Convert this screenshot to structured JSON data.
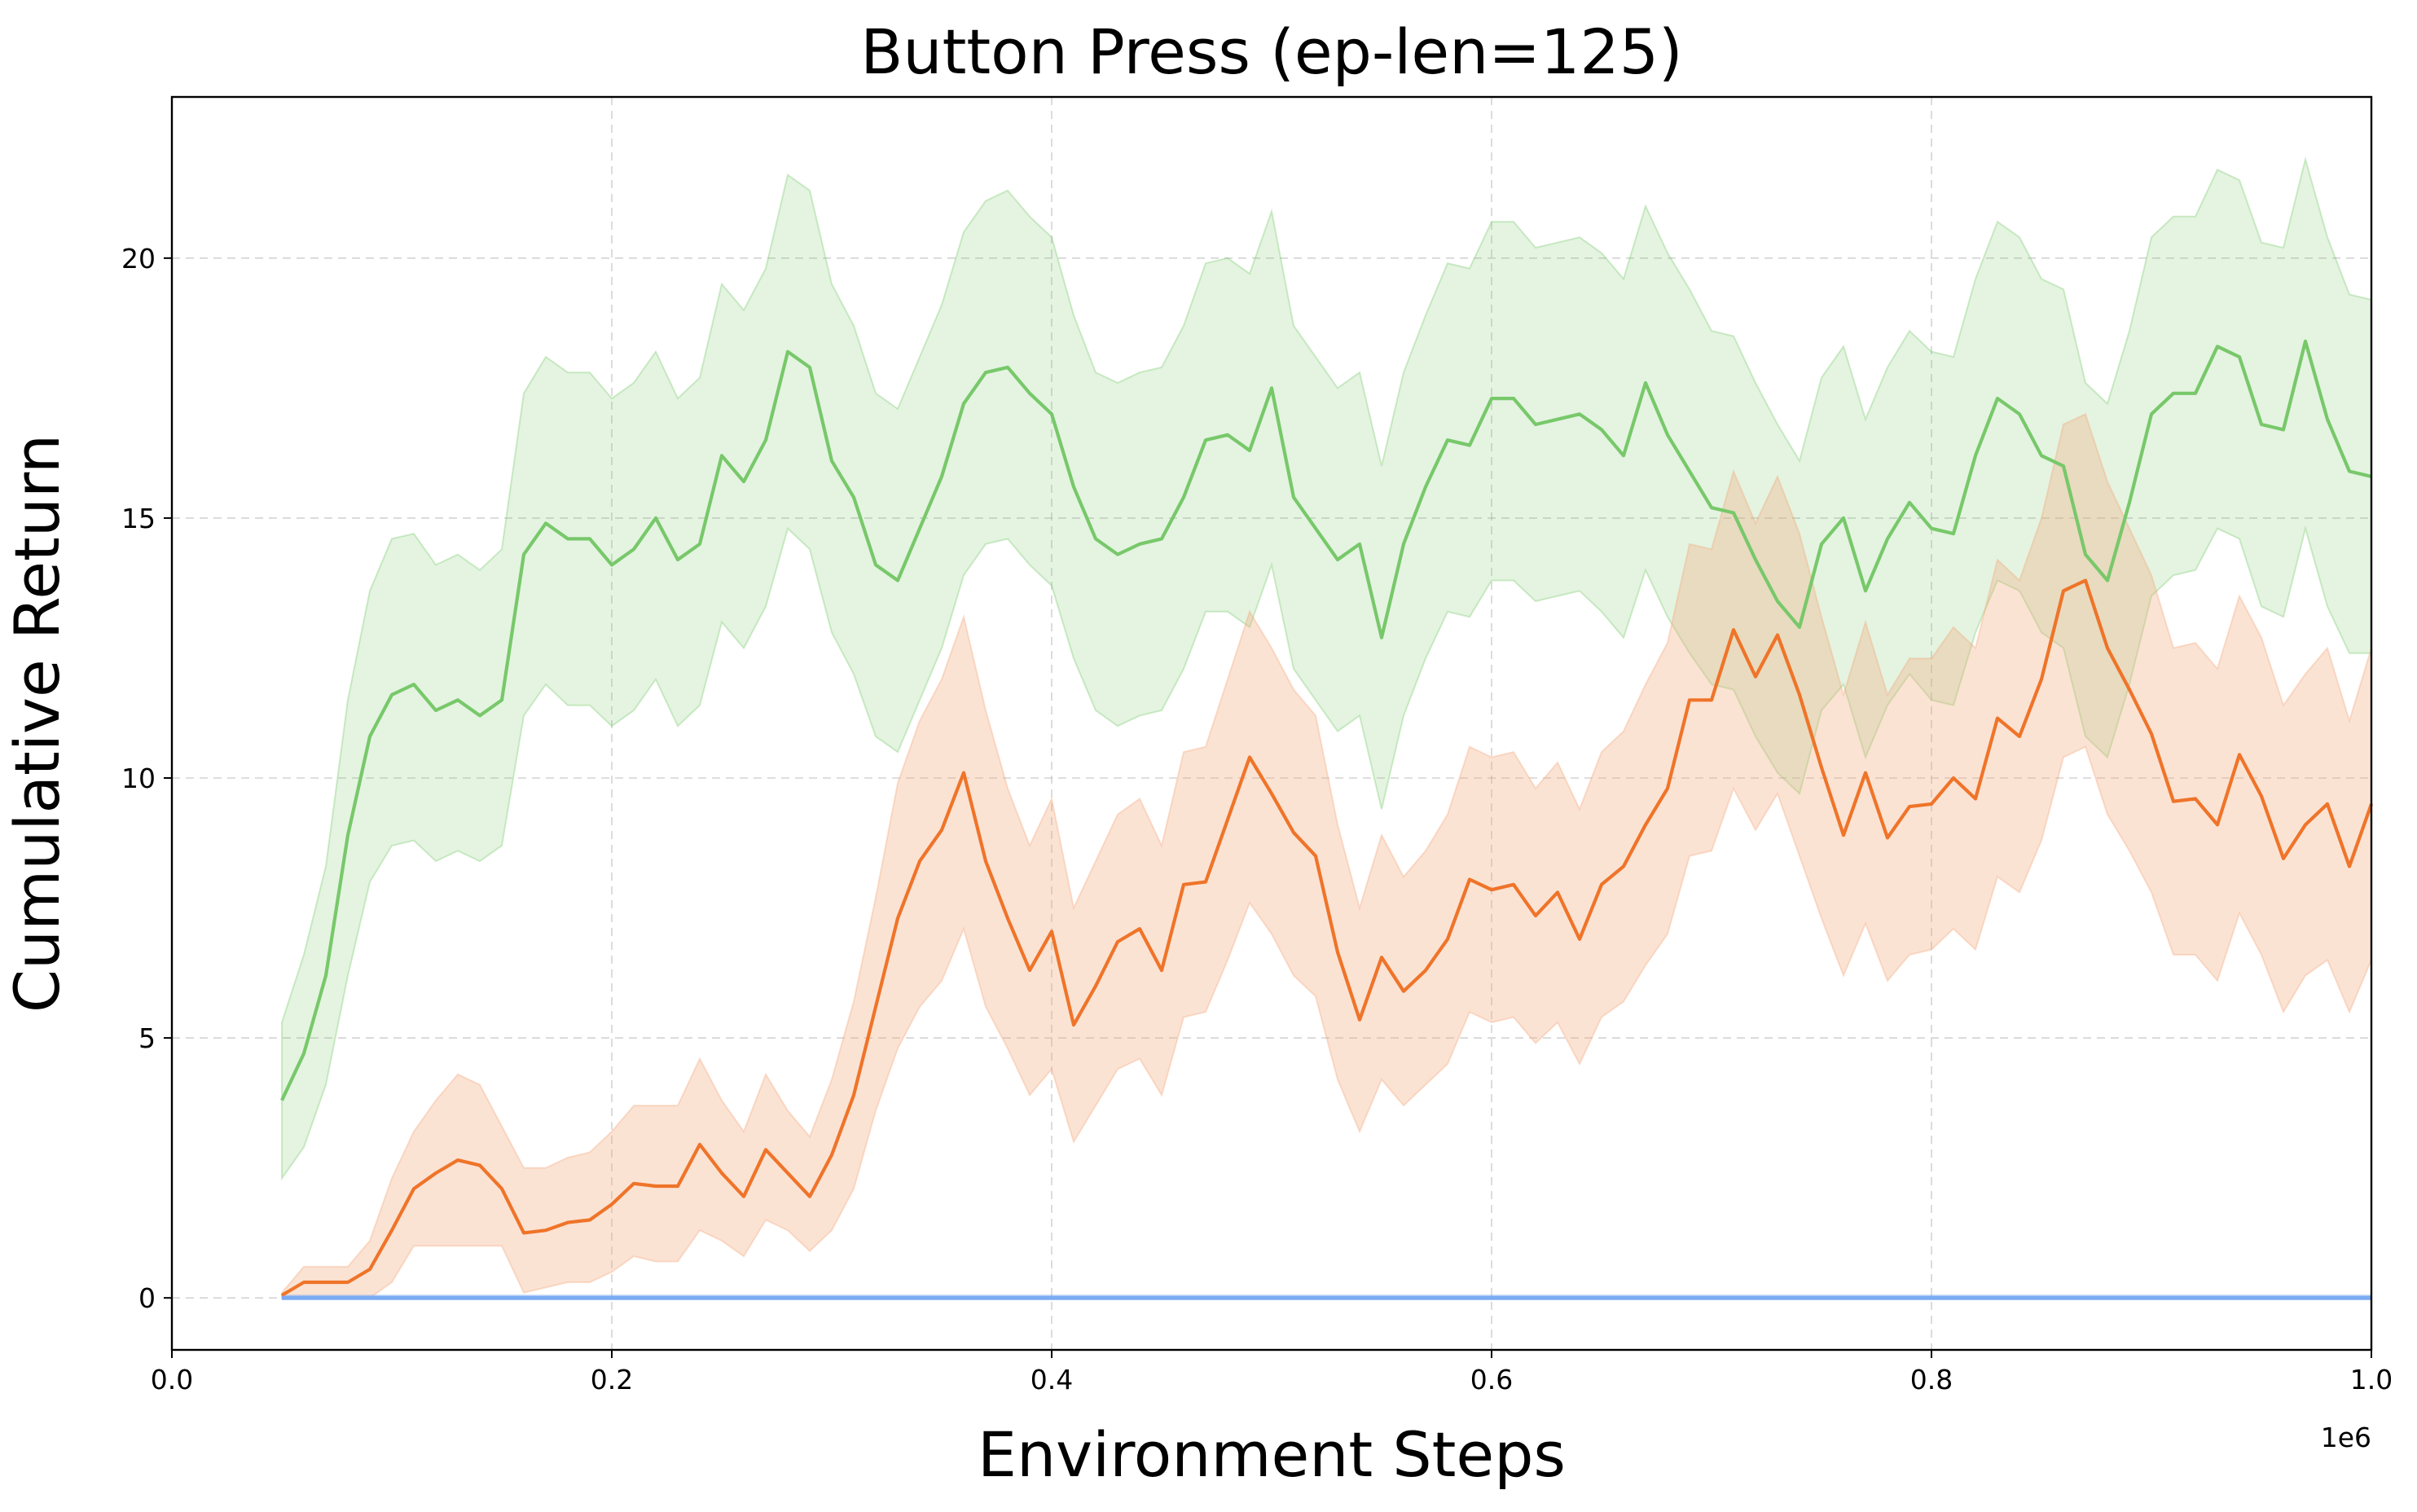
{
  "chart_data": {
    "type": "line",
    "title": "Button Press (ep-len=125)",
    "xlabel": "Environment Steps",
    "ylabel": "Cumulative Return",
    "x_offset_label": "1e6",
    "xlim": [
      0,
      1000000
    ],
    "ylim": [
      -1.0,
      23.1
    ],
    "x_ticks": [
      0,
      200000,
      400000,
      600000,
      800000,
      1000000
    ],
    "x_tick_labels": [
      "0.0",
      "0.2",
      "0.4",
      "0.6",
      "0.8",
      "1.0"
    ],
    "y_ticks": [
      0,
      5,
      10,
      15,
      20
    ],
    "y_tick_labels": [
      "0",
      "5",
      "10",
      "15",
      "20"
    ],
    "grid": true,
    "legend": "none",
    "x": [
      50000,
      60000,
      70000,
      80000,
      90000,
      100000,
      110000,
      120000,
      130000,
      140000,
      150000,
      160000,
      170000,
      180000,
      190000,
      200000,
      210000,
      220000,
      230000,
      240000,
      250000,
      260000,
      270000,
      280000,
      290000,
      300000,
      310000,
      320000,
      330000,
      340000,
      350000,
      360000,
      370000,
      380000,
      390000,
      400000,
      410000,
      420000,
      430000,
      440000,
      450000,
      460000,
      470000,
      480000,
      490000,
      500000,
      510000,
      520000,
      530000,
      540000,
      550000,
      560000,
      570000,
      580000,
      590000,
      600000,
      610000,
      620000,
      630000,
      640000,
      650000,
      660000,
      670000,
      680000,
      690000,
      700000,
      710000,
      720000,
      730000,
      740000,
      750000,
      760000,
      770000,
      780000,
      790000,
      800000,
      810000,
      820000,
      830000,
      840000,
      850000,
      860000,
      870000,
      880000,
      890000,
      900000,
      910000,
      920000,
      930000,
      940000,
      950000,
      960000,
      970000,
      980000,
      990000,
      1000000
    ],
    "series": [
      {
        "color": "#78c86a",
        "band_color": "#78c86a",
        "mean": [
          3.8,
          4.7,
          6.2,
          8.9,
          10.8,
          11.6,
          11.8,
          11.3,
          11.5,
          11.2,
          11.5,
          14.3,
          14.9,
          14.6,
          14.6,
          14.1,
          14.4,
          15.0,
          14.2,
          14.5,
          16.2,
          15.7,
          16.5,
          18.2,
          17.9,
          16.1,
          15.4,
          14.1,
          13.8,
          14.8,
          15.8,
          17.2,
          17.8,
          17.9,
          17.4,
          17.0,
          15.6,
          14.6,
          14.3,
          14.5,
          14.6,
          15.4,
          16.5,
          16.6,
          16.3,
          17.5,
          15.4,
          14.8,
          14.2,
          14.5,
          12.7,
          14.5,
          15.6,
          16.5,
          16.4,
          17.3,
          17.3,
          16.8,
          16.9,
          17.0,
          16.7,
          16.2,
          17.6,
          16.6,
          15.9,
          15.2,
          15.1,
          14.2,
          13.4,
          12.9,
          14.5,
          15.0,
          13.6,
          14.6,
          15.3,
          14.8,
          14.7,
          16.2,
          17.3,
          17.0,
          16.2,
          16.0,
          14.3,
          13.8,
          15.3,
          17.0,
          17.4,
          17.4,
          18.3,
          18.1,
          16.8,
          16.7,
          18.4,
          16.9,
          15.9,
          15.8
        ],
        "lower": [
          2.3,
          2.9,
          4.1,
          6.2,
          8.0,
          8.7,
          8.8,
          8.4,
          8.6,
          8.4,
          8.7,
          11.2,
          11.8,
          11.4,
          11.4,
          11.0,
          11.3,
          11.9,
          11.0,
          11.4,
          13.0,
          12.5,
          13.3,
          14.8,
          14.4,
          12.8,
          12.0,
          10.8,
          10.5,
          11.5,
          12.5,
          13.9,
          14.5,
          14.6,
          14.1,
          13.7,
          12.3,
          11.3,
          11.0,
          11.2,
          11.3,
          12.1,
          13.2,
          13.2,
          12.9,
          14.1,
          12.1,
          11.5,
          10.9,
          11.2,
          9.4,
          11.2,
          12.3,
          13.2,
          13.1,
          13.8,
          13.8,
          13.4,
          13.5,
          13.6,
          13.2,
          12.7,
          14.0,
          13.1,
          12.4,
          11.8,
          11.7,
          10.8,
          10.1,
          9.7,
          11.3,
          11.8,
          10.4,
          11.4,
          12.0,
          11.5,
          11.4,
          12.8,
          13.8,
          13.6,
          12.8,
          12.5,
          10.8,
          10.4,
          11.8,
          13.5,
          13.9,
          14.0,
          14.8,
          14.6,
          13.3,
          13.1,
          14.8,
          13.3,
          12.4,
          12.4
        ],
        "upper": [
          5.3,
          6.6,
          8.3,
          11.5,
          13.6,
          14.6,
          14.7,
          14.1,
          14.3,
          14.0,
          14.4,
          17.4,
          18.1,
          17.8,
          17.8,
          17.3,
          17.6,
          18.2,
          17.3,
          17.7,
          19.5,
          19.0,
          19.8,
          21.6,
          21.3,
          19.5,
          18.7,
          17.4,
          17.1,
          18.1,
          19.1,
          20.5,
          21.1,
          21.3,
          20.8,
          20.4,
          18.9,
          17.8,
          17.6,
          17.8,
          17.9,
          18.7,
          19.9,
          20.0,
          19.7,
          20.9,
          18.7,
          18.1,
          17.5,
          17.8,
          16.0,
          17.8,
          18.9,
          19.9,
          19.8,
          20.7,
          20.7,
          20.2,
          20.3,
          20.4,
          20.1,
          19.6,
          21.0,
          20.1,
          19.4,
          18.6,
          18.5,
          17.6,
          16.8,
          16.1,
          17.7,
          18.3,
          16.9,
          17.9,
          18.6,
          18.2,
          18.1,
          19.6,
          20.7,
          20.4,
          19.6,
          19.4,
          17.6,
          17.2,
          18.6,
          20.4,
          20.8,
          20.8,
          21.7,
          21.5,
          20.3,
          20.2,
          21.9,
          20.4,
          19.3,
          19.2
        ]
      },
      {
        "color": "#ef7429",
        "band_color": "#f4a77a",
        "mean": [
          0.05,
          0.3,
          0.3,
          0.3,
          0.55,
          1.3,
          2.1,
          2.4,
          2.65,
          2.55,
          2.1,
          1.25,
          1.3,
          1.45,
          1.5,
          1.8,
          2.2,
          2.15,
          2.15,
          2.95,
          2.4,
          1.95,
          2.85,
          2.4,
          1.95,
          2.75,
          3.9,
          5.6,
          7.3,
          8.4,
          9.0,
          10.1,
          8.4,
          7.3,
          6.3,
          7.05,
          5.25,
          6.0,
          6.85,
          7.1,
          6.3,
          7.95,
          8.0,
          9.2,
          10.4,
          9.7,
          8.95,
          8.5,
          6.65,
          5.35,
          6.55,
          5.9,
          6.3,
          6.9,
          8.05,
          7.85,
          7.95,
          7.35,
          7.8,
          6.9,
          7.95,
          8.3,
          9.1,
          9.8,
          11.5,
          11.5,
          12.85,
          11.95,
          12.75,
          11.6,
          10.2,
          8.9,
          10.1,
          8.85,
          9.45,
          9.5,
          10.0,
          9.6,
          11.15,
          10.8,
          11.9,
          13.6,
          13.8,
          12.5,
          11.7,
          10.85,
          9.55,
          9.6,
          9.1,
          10.45,
          9.65,
          8.45,
          9.1,
          9.5,
          8.3,
          9.5
        ],
        "lower": [
          0.0,
          0.0,
          0.0,
          0.0,
          0.0,
          0.3,
          1.0,
          1.0,
          1.0,
          1.0,
          1.0,
          0.1,
          0.2,
          0.3,
          0.3,
          0.5,
          0.8,
          0.7,
          0.7,
          1.3,
          1.1,
          0.8,
          1.5,
          1.3,
          0.9,
          1.3,
          2.1,
          3.6,
          4.8,
          5.6,
          6.1,
          7.1,
          5.6,
          4.8,
          3.9,
          4.4,
          3.0,
          3.7,
          4.4,
          4.6,
          3.9,
          5.4,
          5.5,
          6.5,
          7.6,
          7.0,
          6.2,
          5.8,
          4.2,
          3.2,
          4.2,
          3.7,
          4.1,
          4.5,
          5.5,
          5.3,
          5.4,
          4.9,
          5.3,
          4.5,
          5.4,
          5.7,
          6.4,
          7.0,
          8.5,
          8.6,
          9.8,
          9.0,
          9.7,
          8.5,
          7.3,
          6.2,
          7.2,
          6.1,
          6.6,
          6.7,
          7.1,
          6.7,
          8.1,
          7.8,
          8.8,
          10.4,
          10.6,
          9.3,
          8.6,
          7.8,
          6.6,
          6.6,
          6.1,
          7.4,
          6.6,
          5.5,
          6.2,
          6.5,
          5.5,
          6.5
        ],
        "upper": [
          0.1,
          0.6,
          0.6,
          0.6,
          1.1,
          2.3,
          3.2,
          3.8,
          4.3,
          4.1,
          3.3,
          2.5,
          2.5,
          2.7,
          2.8,
          3.2,
          3.7,
          3.7,
          3.7,
          4.6,
          3.8,
          3.2,
          4.3,
          3.6,
          3.1,
          4.2,
          5.7,
          7.7,
          9.9,
          11.1,
          11.9,
          13.1,
          11.3,
          9.8,
          8.7,
          9.6,
          7.5,
          8.4,
          9.3,
          9.6,
          8.7,
          10.5,
          10.6,
          11.9,
          13.2,
          12.5,
          11.7,
          11.2,
          9.1,
          7.5,
          8.9,
          8.1,
          8.6,
          9.3,
          10.6,
          10.4,
          10.5,
          9.8,
          10.3,
          9.4,
          10.5,
          10.9,
          11.8,
          12.6,
          14.5,
          14.4,
          15.9,
          14.9,
          15.8,
          14.7,
          13.1,
          11.6,
          13.0,
          11.6,
          12.3,
          12.3,
          12.9,
          12.5,
          14.2,
          13.8,
          15.0,
          16.8,
          17.0,
          15.7,
          14.8,
          13.9,
          12.5,
          12.6,
          12.1,
          13.5,
          12.7,
          11.4,
          12.0,
          12.5,
          11.1,
          12.5
        ]
      },
      {
        "color": "#7aaaf2",
        "band_color": "#7aaaf2",
        "mean": [
          0.0,
          0.0,
          0.0,
          0.0,
          0.0,
          0.0,
          0.0,
          0.0,
          0.0,
          0.0,
          0.0,
          0.0,
          0.0,
          0.0,
          0.0,
          0.0,
          0.0,
          0.0,
          0.0,
          0.0,
          0.0,
          0.0,
          0.0,
          0.0,
          0.0,
          0.0,
          0.0,
          0.0,
          0.0,
          0.0,
          0.0,
          0.0,
          0.0,
          0.0,
          0.0,
          0.0,
          0.0,
          0.0,
          0.0,
          0.0,
          0.0,
          0.0,
          0.0,
          0.0,
          0.0,
          0.0,
          0.0,
          0.0,
          0.0,
          0.0,
          0.0,
          0.0,
          0.0,
          0.0,
          0.0,
          0.0,
          0.0,
          0.0,
          0.0,
          0.0,
          0.0,
          0.0,
          0.0,
          0.0,
          0.0,
          0.0,
          0.0,
          0.0,
          0.0,
          0.0,
          0.0,
          0.0,
          0.0,
          0.0,
          0.0,
          0.0,
          0.0,
          0.0,
          0.0,
          0.0,
          0.0,
          0.0,
          0.0,
          0.0,
          0.0,
          0.0,
          0.0,
          0.0,
          0.0,
          0.0,
          0.0,
          0.0,
          0.0,
          0.0,
          0.0,
          0.0
        ],
        "lower": [
          0.0,
          0.0,
          0.0,
          0.0,
          0.0,
          0.0,
          0.0,
          0.0,
          0.0,
          0.0,
          0.0,
          0.0,
          0.0,
          0.0,
          0.0,
          0.0,
          0.0,
          0.0,
          0.0,
          0.0,
          0.0,
          0.0,
          0.0,
          0.0,
          0.0,
          0.0,
          0.0,
          0.0,
          0.0,
          0.0,
          0.0,
          0.0,
          0.0,
          0.0,
          0.0,
          0.0,
          0.0,
          0.0,
          0.0,
          0.0,
          0.0,
          0.0,
          0.0,
          0.0,
          0.0,
          0.0,
          0.0,
          0.0,
          0.0,
          0.0,
          0.0,
          0.0,
          0.0,
          0.0,
          0.0,
          0.0,
          0.0,
          0.0,
          0.0,
          0.0,
          0.0,
          0.0,
          0.0,
          0.0,
          0.0,
          0.0,
          0.0,
          0.0,
          0.0,
          0.0,
          0.0,
          0.0,
          0.0,
          0.0,
          0.0,
          0.0,
          0.0,
          0.0,
          0.0,
          0.0,
          0.0,
          0.0,
          0.0,
          0.0,
          0.0,
          0.0,
          0.0,
          0.0,
          0.0,
          0.0,
          0.0,
          0.0,
          0.0,
          0.0,
          0.0,
          0.0
        ],
        "upper": [
          0.05,
          0.05,
          0.05,
          0.05,
          0.05,
          0.05,
          0.05,
          0.05,
          0.05,
          0.05,
          0.05,
          0.05,
          0.05,
          0.05,
          0.05,
          0.05,
          0.05,
          0.05,
          0.05,
          0.05,
          0.05,
          0.05,
          0.05,
          0.05,
          0.05,
          0.05,
          0.05,
          0.05,
          0.05,
          0.05,
          0.05,
          0.05,
          0.05,
          0.05,
          0.05,
          0.05,
          0.05,
          0.05,
          0.05,
          0.05,
          0.05,
          0.05,
          0.05,
          0.05,
          0.05,
          0.05,
          0.05,
          0.05,
          0.05,
          0.05,
          0.05,
          0.05,
          0.05,
          0.05,
          0.05,
          0.05,
          0.05,
          0.05,
          0.05,
          0.05,
          0.05,
          0.05,
          0.05,
          0.05,
          0.05,
          0.05,
          0.05,
          0.05,
          0.05,
          0.05,
          0.05,
          0.05,
          0.05,
          0.05,
          0.05,
          0.05,
          0.05,
          0.05,
          0.05,
          0.05,
          0.05,
          0.05,
          0.05,
          0.05,
          0.05,
          0.05,
          0.05,
          0.05,
          0.05,
          0.05,
          0.05,
          0.05,
          0.05,
          0.05,
          0.05,
          0.05
        ]
      }
    ]
  }
}
